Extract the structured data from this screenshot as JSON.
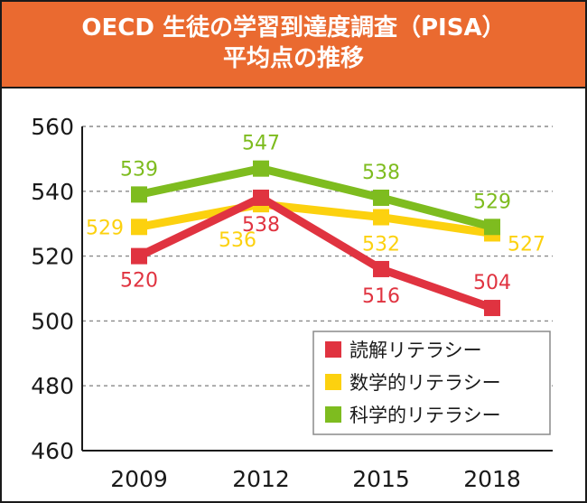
{
  "title": {
    "line1": "OECD 生徒の学習到達度調査（PISA）",
    "line2": "平均点の推移"
  },
  "chart_data": {
    "type": "line",
    "x": [
      "2009",
      "2012",
      "2015",
      "2018"
    ],
    "ylim": [
      460,
      560
    ],
    "yticks": [
      460,
      480,
      500,
      520,
      540,
      560
    ],
    "grid": true,
    "legend_position": "bottom-right",
    "series": [
      {
        "name": "読解リテラシー",
        "color": "#e03340",
        "values": [
          520,
          538,
          516,
          504
        ]
      },
      {
        "name": "数学的リテラシー",
        "color": "#fcd10f",
        "values": [
          529,
          536,
          532,
          527
        ]
      },
      {
        "name": "科学的リテラシー",
        "color": "#7ebc1f",
        "values": [
          539,
          547,
          538,
          529
        ]
      }
    ]
  }
}
